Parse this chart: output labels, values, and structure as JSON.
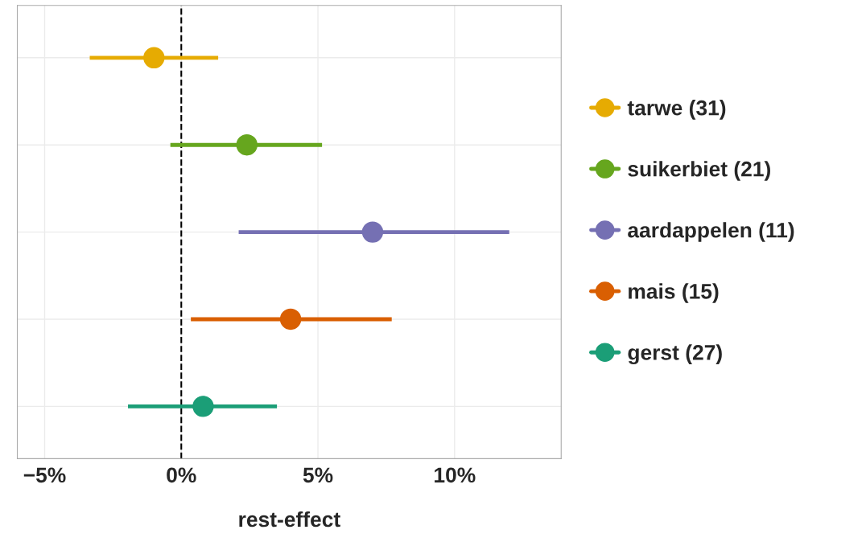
{
  "chart_data": {
    "type": "scatter",
    "orientation": "horizontal",
    "xlabel": "rest-effect",
    "categories": [
      null,
      null,
      null,
      null,
      null
    ],
    "series": [
      {
        "name": "tarwe (31)",
        "color": "#e6ab02",
        "values": [
          -1.0,
          null,
          null,
          null,
          null
        ],
        "errors": [
          [
            -3.35,
            1.35
          ],
          null,
          null,
          null,
          null
        ]
      },
      {
        "name": "suikerbiet (21)",
        "color": "#66a61e",
        "values": [
          null,
          2.4,
          null,
          null,
          null
        ],
        "errors": [
          null,
          [
            -0.4,
            5.15
          ],
          null,
          null,
          null
        ]
      },
      {
        "name": "aardappelen (11)",
        "color": "#7570b3",
        "values": [
          null,
          null,
          7.0,
          null,
          null
        ],
        "errors": [
          null,
          null,
          [
            2.1,
            12.0
          ],
          null,
          null
        ]
      },
      {
        "name": "mais (15)",
        "color": "#d95f02",
        "values": [
          null,
          null,
          null,
          4.0,
          null
        ],
        "errors": [
          null,
          null,
          null,
          [
            0.35,
            7.7
          ],
          null
        ]
      },
      {
        "name": "gerst (27)",
        "color": "#1b9e77",
        "values": [
          null,
          null,
          null,
          null,
          0.8
        ],
        "errors": [
          null,
          null,
          null,
          null,
          [
            -1.95,
            3.5
          ]
        ]
      }
    ],
    "xlim": [
      -6.0,
      13.9
    ],
    "xticks": [
      {
        "value": -5,
        "label": "−5%"
      },
      {
        "value": 0,
        "label": "0%"
      },
      {
        "value": 5,
        "label": "5%"
      },
      {
        "value": 10,
        "label": "10%"
      }
    ],
    "ref_lines": [
      {
        "axis": "x",
        "value": 0,
        "color": "#000000",
        "line_style": "dashed"
      }
    ],
    "grid": true,
    "legend": "right",
    "marker": "circle"
  }
}
